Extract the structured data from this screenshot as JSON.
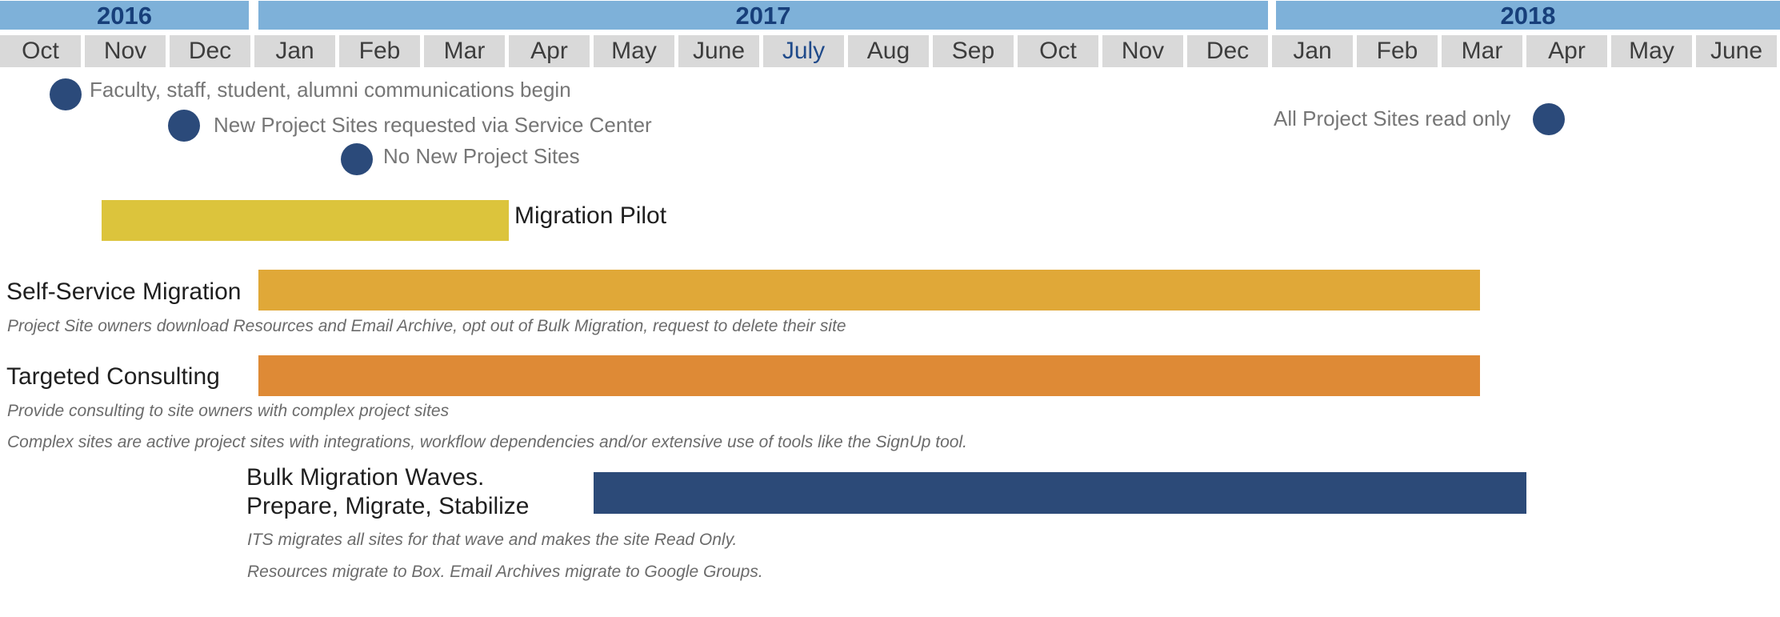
{
  "timeline": {
    "years": [
      {
        "label": "2016",
        "start": 0,
        "end": 3
      },
      {
        "label": "2017",
        "start": 3,
        "end": 15
      },
      {
        "label": "2018",
        "start": 15,
        "end": 21
      }
    ],
    "months": [
      "Oct",
      "Nov",
      "Dec",
      "Jan",
      "Feb",
      "Mar",
      "Apr",
      "May",
      "June",
      "July",
      "Aug",
      "Sep",
      "Oct",
      "Nov",
      "Dec",
      "Jan",
      "Feb",
      "Mar",
      "Apr",
      "May",
      "June"
    ],
    "current_month_index": 9
  },
  "milestones": [
    {
      "text": "Faculty, staff, student, alumni communications begin",
      "month_index": 0.8,
      "side": "right"
    },
    {
      "text": "New Project Sites requested via Service Center",
      "month_index": 2.2,
      "side": "right"
    },
    {
      "text": "No New Project Sites",
      "month_index": 4.2,
      "side": "right"
    },
    {
      "text": "All Project Sites read only",
      "month_index": 18.2,
      "side": "left"
    }
  ],
  "workstreams": [
    {
      "label": "Migration Pilot",
      "label_side": "right",
      "start": 1.2,
      "end": 6.0,
      "color": "#dcc43c",
      "notes": []
    },
    {
      "label": "Self-Service Migration",
      "label_side": "left",
      "start": 3.05,
      "end": 17.45,
      "color": "#e0a838",
      "notes": [
        "Project Site owners download Resources and Email Archive, opt out of Bulk Migration, request to delete their site"
      ]
    },
    {
      "label": "Targeted Consulting",
      "label_side": "left",
      "start": 3.05,
      "end": 17.45,
      "color": "#de8a36",
      "notes": [
        "Provide consulting to site owners with complex project sites",
        "Complex sites are active project sites with integrations, workflow dependencies and/or extensive use of tools like the SignUp tool."
      ]
    },
    {
      "label": "Bulk Migration Waves.",
      "label_line2": "Prepare, Migrate, Stabilize",
      "label_side": "left",
      "start": 7.0,
      "end": 18.0,
      "color": "#2c4a78",
      "notes": [
        "ITS migrates all sites for that wave and makes the site Read Only.",
        "Resources migrate to Box.  Email Archives migrate to Google Groups."
      ]
    }
  ]
}
